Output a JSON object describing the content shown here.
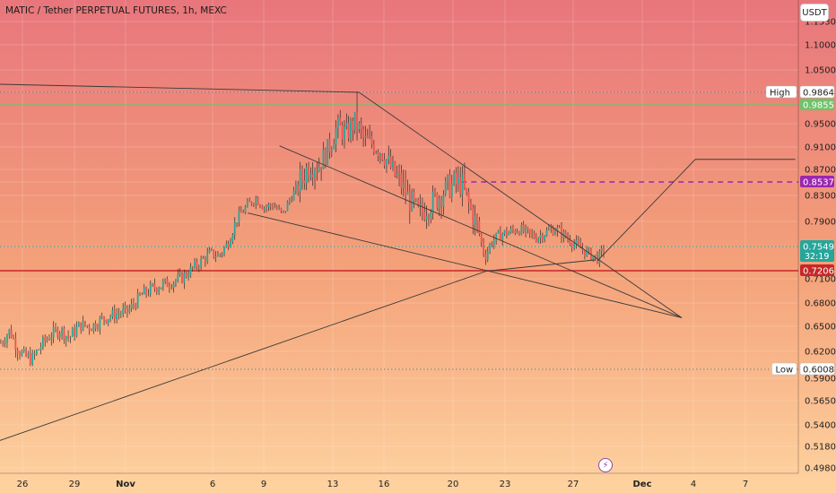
{
  "title": "MATIC / Tether PERPETUAL FUTURES, 1h, MEXC",
  "currency_button": "USDT",
  "lightning_icon": "lightning-icon",
  "colors": {
    "bg_top": "#e8767c",
    "bg_mid": "#f4a27a",
    "bg_bottom": "#fed3a0",
    "candle_up": "#26a69a",
    "candle_down": "#ef5350",
    "trendline": "#3a3a3a",
    "green_level": "#6fc36a",
    "purple_level": "#9c27b0",
    "red_level": "#c62828",
    "current_price_tag": "#26a69a",
    "dotted": "#777777"
  },
  "chart_data": {
    "type": "candlestick",
    "symbol": "MATIC / Tether PERPETUAL FUTURES",
    "interval": "1h",
    "exchange": "MEXC",
    "ylim": [
      0.498,
      1.153
    ],
    "y_ticks": [
      "1.1530",
      "1.1000",
      "1.0500",
      "0.9500",
      "0.9100",
      "0.8700",
      "0.8300",
      "0.7900",
      "0.7100",
      "0.6800",
      "0.6500",
      "0.6200",
      "0.5900",
      "0.5650",
      "0.5400",
      "0.5180",
      "0.4980"
    ],
    "x_ticks": [
      "26",
      "29",
      "Nov",
      "6",
      "9",
      "13",
      "16",
      "20",
      "23",
      "27",
      "Dec",
      "4",
      "7"
    ],
    "close_path": [
      [
        0,
        0.63
      ],
      [
        0.04,
        0.645
      ],
      [
        0.07,
        0.625
      ],
      [
        0.1,
        0.615
      ],
      [
        0.14,
        0.612
      ],
      [
        0.18,
        0.628
      ],
      [
        0.22,
        0.64
      ],
      [
        0.26,
        0.646
      ],
      [
        0.3,
        0.636
      ],
      [
        0.35,
        0.652
      ],
      [
        0.4,
        0.65
      ],
      [
        0.45,
        0.66
      ],
      [
        0.5,
        0.665
      ],
      [
        0.56,
        0.67
      ],
      [
        0.62,
        0.69
      ],
      [
        0.68,
        0.7
      ],
      [
        0.74,
        0.705
      ],
      [
        0.8,
        0.712
      ],
      [
        0.86,
        0.728
      ],
      [
        0.92,
        0.745
      ],
      [
        0.96,
        0.742
      ],
      [
        1.0,
        0.76
      ],
      [
        1.04,
        0.795
      ],
      [
        1.08,
        0.812
      ],
      [
        1.12,
        0.826
      ],
      [
        1.16,
        0.812
      ],
      [
        1.2,
        0.815
      ],
      [
        1.24,
        0.8
      ],
      [
        1.28,
        0.83
      ],
      [
        1.32,
        0.855
      ],
      [
        1.36,
        0.88
      ],
      [
        1.4,
        0.878
      ],
      [
        1.44,
        0.905
      ],
      [
        1.48,
        0.945
      ],
      [
        1.52,
        0.932
      ],
      [
        1.56,
        0.955
      ],
      [
        1.6,
        0.92
      ],
      [
        1.64,
        0.915
      ],
      [
        1.68,
        0.9
      ],
      [
        1.72,
        0.87
      ],
      [
        1.76,
        0.85
      ],
      [
        1.8,
        0.822
      ],
      [
        1.84,
        0.8
      ],
      [
        1.88,
        0.815
      ],
      [
        1.92,
        0.825
      ],
      [
        1.96,
        0.842
      ],
      [
        2.0,
        0.85
      ],
      [
        2.03,
        0.848
      ],
      [
        2.06,
        0.815
      ],
      [
        2.1,
        0.78
      ],
      [
        2.13,
        0.74
      ],
      [
        2.16,
        0.762
      ],
      [
        2.2,
        0.772
      ],
      [
        2.24,
        0.775
      ],
      [
        2.28,
        0.78
      ],
      [
        2.32,
        0.772
      ],
      [
        2.36,
        0.768
      ],
      [
        2.4,
        0.775
      ],
      [
        2.44,
        0.78
      ],
      [
        2.48,
        0.77
      ],
      [
        2.52,
        0.76
      ],
      [
        2.56,
        0.75
      ],
      [
        2.6,
        0.742
      ],
      [
        2.63,
        0.738
      ],
      [
        2.66,
        0.755
      ]
    ],
    "levels": [
      {
        "label": "High",
        "value": "0.9864",
        "price": 0.9864,
        "style": "dotted",
        "color": "#777777"
      },
      {
        "label": "",
        "value": "0.9855",
        "price": 0.9855,
        "style": "solid",
        "color": "#6fc36a"
      },
      {
        "label": "",
        "value": "0.8537",
        "price": 0.8537,
        "style": "dashed",
        "color": "#9c27b0"
      },
      {
        "label": "",
        "value": "0.7549",
        "price": 0.7549,
        "style": "dotted",
        "color": "#26a69a",
        "sub": "32:19"
      },
      {
        "label": "",
        "value": "0.7206",
        "price": 0.7206,
        "style": "solid",
        "color": "#c62828"
      },
      {
        "label": "Low",
        "value": "0.6008",
        "price": 0.6008,
        "style": "dotted",
        "color": "#777777"
      }
    ],
    "trendlines": [
      {
        "t1": -0.05,
        "p1": 1.01,
        "t2": 1.58,
        "p2": 0.9864
      },
      {
        "t1": 1.58,
        "p1": 0.9864,
        "t2": 3.0,
        "p2": 0.661
      },
      {
        "t1": 1.23,
        "p1": 0.912,
        "t2": 3.0,
        "p2": 0.661
      },
      {
        "t1": 1.09,
        "p1": 0.803,
        "t2": 3.0,
        "p2": 0.661
      },
      {
        "t1": -0.05,
        "p1": 0.52,
        "t2": 2.14,
        "p2": 0.72
      },
      {
        "t1": 2.14,
        "p1": 0.72,
        "t2": 2.62,
        "p2": 0.736
      }
    ],
    "projection": [
      {
        "t": 2.63,
        "p": 0.735
      },
      {
        "t": 3.06,
        "p": 0.888
      },
      {
        "t": 3.5,
        "p": 0.888
      }
    ]
  }
}
